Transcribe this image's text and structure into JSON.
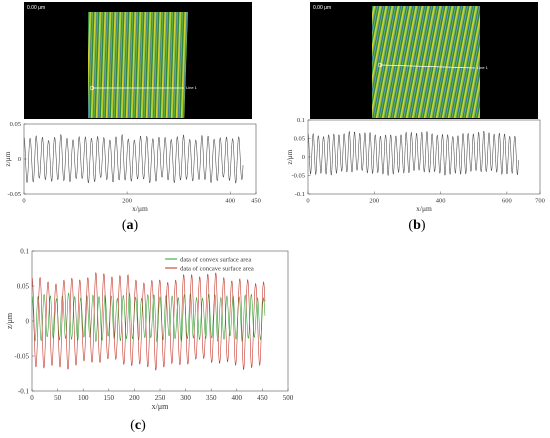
{
  "panels": {
    "a": {
      "caption_letter": "a",
      "micro": {
        "corner_label": "0.00 μm",
        "line_label": "Line 1"
      },
      "chart_data": {
        "type": "line",
        "xlabel": "x/μm",
        "ylabel": "z/μm",
        "xlim": [
          0,
          450
        ],
        "ylim": [
          -0.05,
          0.05
        ],
        "xticks": [
          0,
          200,
          400,
          450
        ],
        "yticks": [
          -0.05,
          0,
          0.05
        ],
        "series": [
          {
            "wavelength": 11.9,
            "peak": 0.035,
            "trough": -0.035,
            "x_end": 425,
            "color": "#333333"
          }
        ]
      }
    },
    "b": {
      "caption_letter": "b",
      "micro": {
        "corner_label": "0.00 μm",
        "line_label": "Line 1"
      },
      "chart_data": {
        "type": "line",
        "xlabel": "x/μm",
        "ylabel": "z/μm",
        "xlim": [
          0,
          700
        ],
        "ylim": [
          -0.1,
          0.1
        ],
        "xticks": [
          0,
          200,
          400,
          600,
          700
        ],
        "yticks": [
          -0.1,
          -0.05,
          0,
          0.05,
          0.1
        ],
        "series": [
          {
            "wavelength": 15.6,
            "peak": 0.07,
            "trough": -0.05,
            "x_end": 635,
            "color": "#333333"
          }
        ]
      }
    },
    "c": {
      "caption_letter": "c",
      "chart_data": {
        "type": "line",
        "xlabel": "x/μm",
        "ylabel": "z/μm",
        "xlim": [
          0,
          500
        ],
        "ylim": [
          -0.1,
          0.1
        ],
        "xticks": [
          0,
          50,
          100,
          150,
          200,
          250,
          300,
          350,
          400,
          450,
          500
        ],
        "yticks": [
          -0.1,
          -0.05,
          0,
          0.05,
          0.1
        ],
        "legend_position": "top-right",
        "series": [
          {
            "name": "data of convex surface area",
            "color": "#2a9d2a",
            "wavelength": 11.9,
            "peak": 0.04,
            "trough": -0.03,
            "x_end": 455
          },
          {
            "name": "data of concave surface area",
            "color": "#c0281c",
            "wavelength": 15.6,
            "peak": 0.07,
            "trough": -0.07,
            "x_end": 455
          }
        ]
      }
    }
  }
}
